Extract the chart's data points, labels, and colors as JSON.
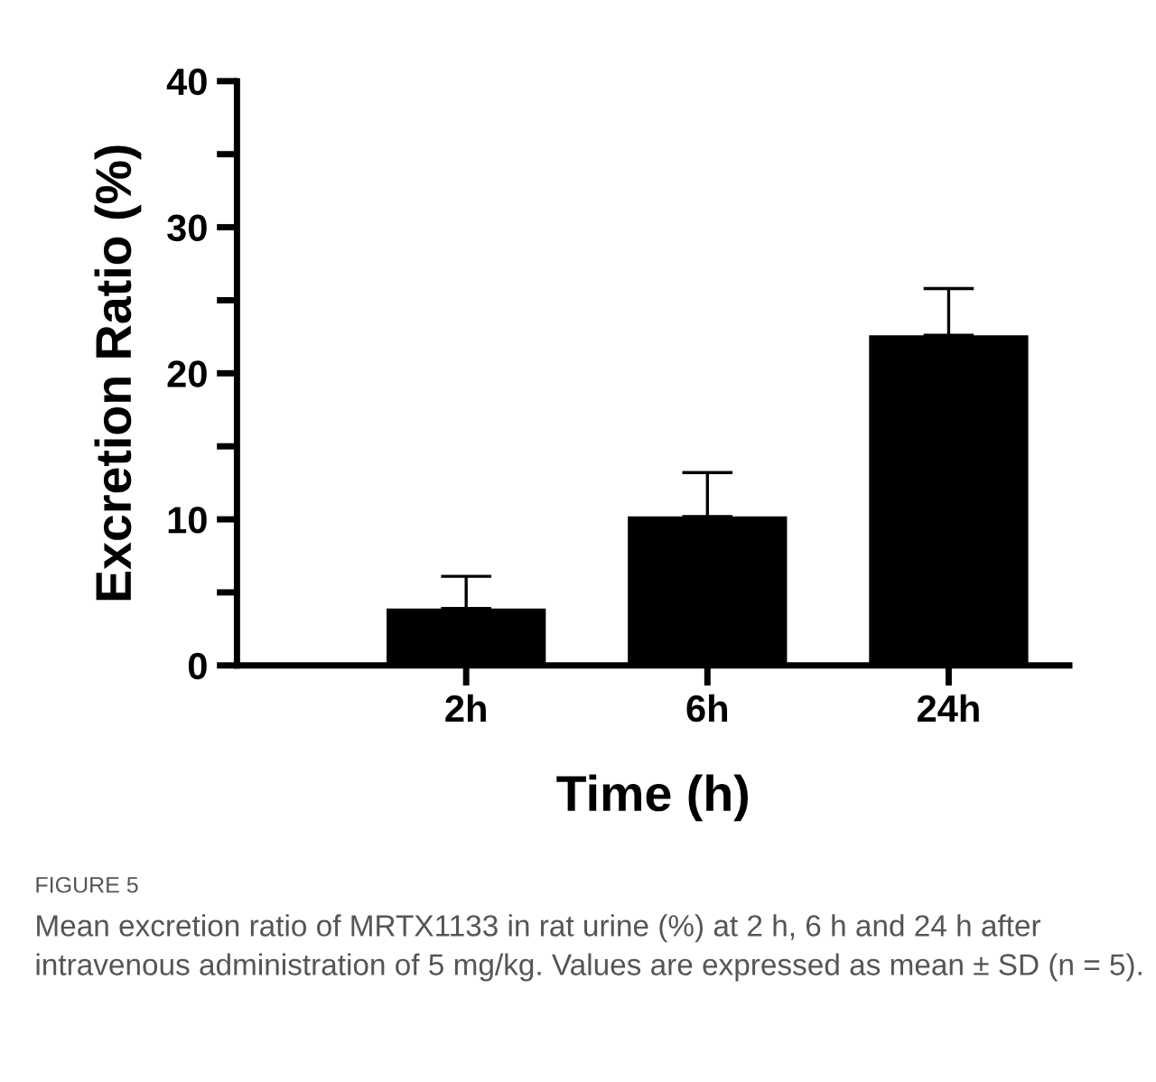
{
  "chart_data": {
    "type": "bar",
    "categories": [
      "2h",
      "6h",
      "24h"
    ],
    "values": [
      3.9,
      10.2,
      22.6
    ],
    "color": "#000000",
    "errors": [
      [
        3.9,
        6.1
      ],
      [
        10.2,
        13.2
      ],
      [
        22.6,
        25.8
      ]
    ],
    "xlabel": "Time (h)",
    "ylabel": "Excretion Ratio (%)",
    "ylim": [
      0,
      40
    ],
    "yticks": [
      0,
      {
        "value": 5,
        "label": null
      },
      10,
      {
        "value": 15,
        "label": null
      },
      20,
      {
        "value": 25,
        "label": null
      },
      30,
      {
        "value": 35,
        "label": null
      },
      40
    ],
    "grid": false,
    "legend": false,
    "annotations": [
      "FIGURE 5",
      "Mean excretion ratio of MRTX1133 in rat urine (%) at 2 h, 6 h and 24 h after intravenous administration of 5 mg/kg. Values are expressed as mean ± SD (n = 5)."
    ]
  }
}
